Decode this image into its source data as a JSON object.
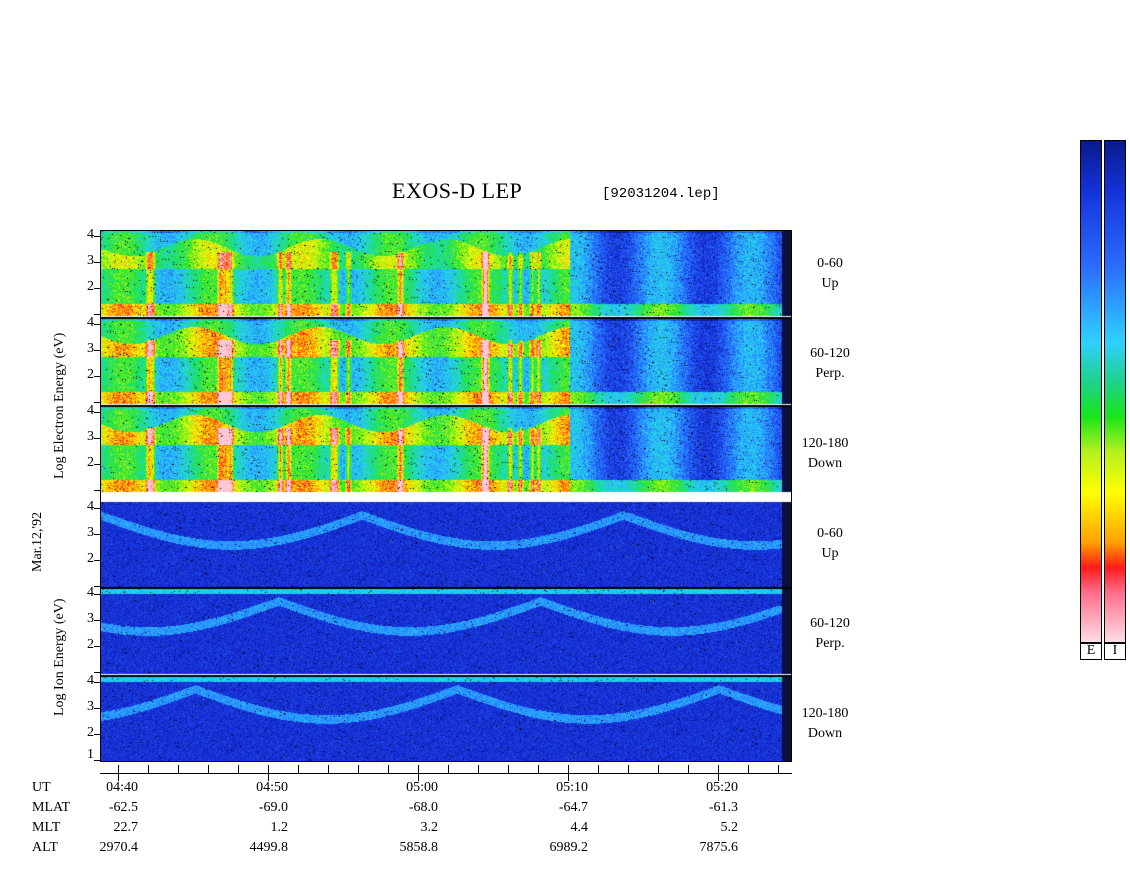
{
  "title": "EXOS-D LEP",
  "file": "[92031204.lep]",
  "date_label": "Mar.12,'92",
  "electron_axis_label": "Log  Electron  Energy (eV)",
  "ion_axis_label": "Log  Ion  Energy (eV)",
  "electron_panels": [
    {
      "range": "0-60",
      "dir": "Up"
    },
    {
      "range": "60-120",
      "dir": "Perp."
    },
    {
      "range": "120-180",
      "dir": "Down"
    }
  ],
  "ion_panels": [
    {
      "range": "0-60",
      "dir": "Up"
    },
    {
      "range": "60-120",
      "dir": "Perp."
    },
    {
      "range": "120-180",
      "dir": "Down"
    }
  ],
  "y_ticks": [
    "4",
    "3",
    "2"
  ],
  "y_ticks_low": [
    "4",
    "3",
    "2",
    "1"
  ],
  "orbit_rows": {
    "labels": [
      "UT",
      "MLAT",
      "MLT",
      "ALT"
    ],
    "UT": [
      "04:40",
      "04:50",
      "05:00",
      "05:10",
      "05:20"
    ],
    "MLAT": [
      "-62.5",
      "-69.0",
      "-68.0",
      "-64.7",
      "-61.3"
    ],
    "MLT": [
      "22.7",
      "1.2",
      "3.2",
      "4.4",
      "5.2"
    ],
    "ALT": [
      "2970.4",
      "4499.8",
      "5858.8",
      "6989.2",
      "7875.6"
    ]
  },
  "colorbar_labels": [
    "E",
    "I"
  ],
  "chart_data": {
    "type": "heatmap",
    "title": "EXOS-D LEP",
    "xlabel": "UT",
    "ylabel": "Log Energy (eV)",
    "x_ticks": [
      "04:40",
      "04:50",
      "05:00",
      "05:10",
      "05:20"
    ],
    "ylim": [
      0.7,
      4.3
    ],
    "panels": [
      "Electron 0-60 Up",
      "Electron 60-120 Perp.",
      "Electron 120-180 Down",
      "Ion 0-60 Up",
      "Ion 60-120 Perp.",
      "Ion 120-180 Down"
    ],
    "colorscale": [
      "#0a1a8c",
      "#1e5aff",
      "#2fd0ff",
      "#19e619",
      "#ffff00",
      "#ff8c00",
      "#ff1a1a",
      "#ffe0e8"
    ]
  }
}
